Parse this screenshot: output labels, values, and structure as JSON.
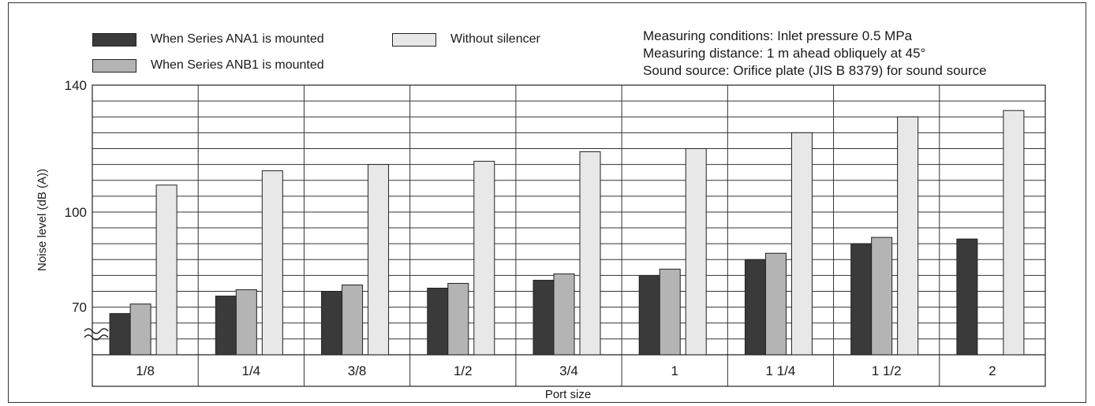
{
  "chart_data": {
    "type": "bar",
    "xlabel": "Port size",
    "ylabel": "Noise level (dB (A))",
    "ylim": [
      55,
      140
    ],
    "y_ticks": [
      "140",
      "100",
      "70"
    ],
    "y_axis_break": true,
    "grid": true,
    "legend_position": "top-left",
    "categories": [
      "1/8",
      "1/4",
      "3/8",
      "1/2",
      "3/4",
      "1",
      "1  1/4",
      "1  1/2",
      "2"
    ],
    "series": [
      {
        "name": "When Series ANA1 is mounted",
        "color": "#3a3a3a",
        "values": [
          68,
          73.5,
          75,
          76,
          78.5,
          80,
          85,
          90,
          91.5
        ]
      },
      {
        "name": "When Series ANB1 is mounted",
        "color": "#b4b4b4",
        "values": [
          71,
          75.5,
          77,
          77.5,
          80.5,
          82,
          87,
          92,
          null
        ]
      },
      {
        "name": "Without silencer",
        "color": "#e8e8e8",
        "values": [
          108.5,
          113,
          115,
          116,
          119,
          120,
          125,
          130,
          132
        ]
      }
    ],
    "annotations": [
      "Measuring conditions: Inlet pressure 0.5 MPa",
      "Measuring distance: 1 m ahead obliquely at 45°",
      "Sound source: Orifice plate (JIS B 8379) for sound source"
    ]
  }
}
